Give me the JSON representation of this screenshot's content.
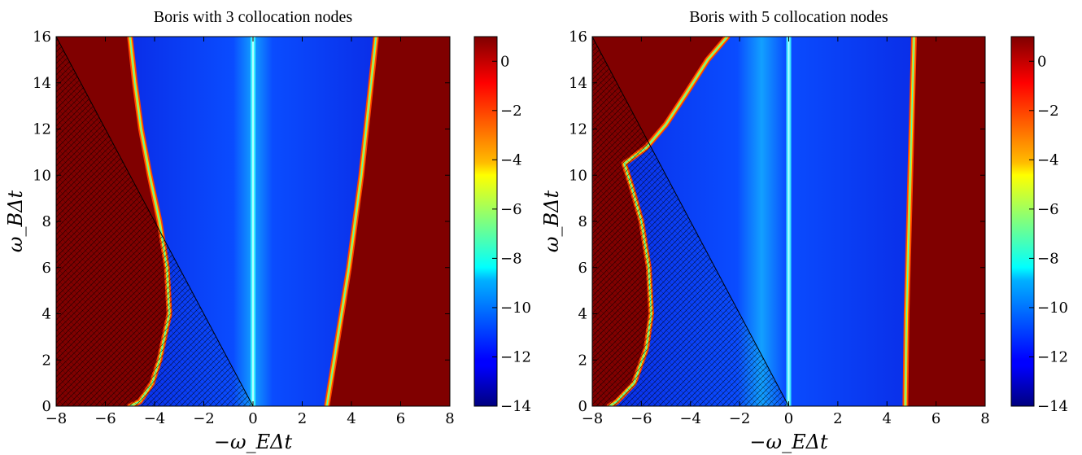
{
  "chart_data": [
    {
      "type": "heatmap",
      "title": "Boris with 3 collocation nodes",
      "xlabel": "−ω_EΔt",
      "ylabel": "ω_BΔt",
      "xlim": [
        -8,
        8
      ],
      "ylim": [
        0,
        16
      ],
      "x_ticks": [
        -8,
        -6,
        -4,
        -2,
        0,
        2,
        4,
        6,
        8
      ],
      "y_ticks": [
        0,
        2,
        4,
        6,
        8,
        10,
        12,
        14,
        16
      ],
      "x_tick_labels": [
        "−8",
        "−6",
        "−4",
        "−2",
        "0",
        "2",
        "4",
        "6",
        "8"
      ],
      "y_tick_labels": [
        "0",
        "2",
        "4",
        "6",
        "8",
        "10",
        "12",
        "14",
        "16"
      ],
      "colorbar": {
        "min": -14,
        "max": 1,
        "ticks": [
          0,
          -2,
          -4,
          -6,
          -8,
          -10,
          -12,
          -14
        ],
        "tick_labels": [
          "0",
          "−2",
          "−4",
          "−6",
          "−8",
          "−10",
          "−12",
          "−14"
        ]
      },
      "stable_region_right_boundary": [
        [
          3.0,
          0
        ],
        [
          3.3,
          2
        ],
        [
          3.6,
          4
        ],
        [
          3.9,
          6
        ],
        [
          4.15,
          8
        ],
        [
          4.4,
          10
        ],
        [
          4.6,
          12
        ],
        [
          4.8,
          14
        ],
        [
          5.0,
          16
        ]
      ],
      "stable_region_left_boundary": [
        [
          -5.0,
          16
        ],
        [
          -4.8,
          14
        ],
        [
          -4.55,
          12
        ],
        [
          -4.2,
          10
        ],
        [
          -3.8,
          8
        ],
        [
          -3.5,
          6
        ],
        [
          -3.4,
          4
        ],
        [
          -3.8,
          2
        ],
        [
          -4.1,
          1
        ],
        [
          -4.6,
          0.2
        ],
        [
          -5.0,
          0
        ]
      ],
      "hatched_triangle": [
        [
          -8,
          0
        ],
        [
          -8,
          16
        ],
        [
          0,
          0
        ]
      ]
    },
    {
      "type": "heatmap",
      "title": "Boris with 5 collocation nodes",
      "xlabel": "−ω_EΔt",
      "ylabel": "ω_BΔt",
      "xlim": [
        -8,
        8
      ],
      "ylim": [
        0,
        16
      ],
      "x_ticks": [
        -8,
        -6,
        -4,
        -2,
        0,
        2,
        4,
        6,
        8
      ],
      "y_ticks": [
        0,
        2,
        4,
        6,
        8,
        10,
        12,
        14,
        16
      ],
      "x_tick_labels": [
        "−8",
        "−6",
        "−4",
        "−2",
        "0",
        "2",
        "4",
        "6",
        "8"
      ],
      "y_tick_labels": [
        "0",
        "2",
        "4",
        "6",
        "8",
        "10",
        "12",
        "14",
        "16"
      ],
      "colorbar": {
        "min": -14,
        "max": 1,
        "ticks": [
          0,
          -2,
          -4,
          -6,
          -8,
          -10,
          -12,
          -14
        ],
        "tick_labels": [
          "0",
          "−2",
          "−4",
          "−6",
          "−8",
          "−10",
          "−12",
          "−14"
        ]
      },
      "stable_region_right_boundary": [
        [
          4.75,
          0
        ],
        [
          4.8,
          4
        ],
        [
          4.9,
          8
        ],
        [
          5.0,
          12
        ],
        [
          5.1,
          16
        ]
      ],
      "stable_region_left_boundary": [
        [
          -2.5,
          16
        ],
        [
          -3.3,
          15
        ],
        [
          -4.2,
          13.5
        ],
        [
          -5.0,
          12.2
        ],
        [
          -5.8,
          11.2
        ],
        [
          -6.7,
          10.5
        ],
        [
          -6.4,
          9.5
        ],
        [
          -6.0,
          8
        ],
        [
          -5.7,
          6
        ],
        [
          -5.6,
          4
        ],
        [
          -5.8,
          2.5
        ],
        [
          -6.3,
          1
        ],
        [
          -7.0,
          0.2
        ],
        [
          -7.3,
          0
        ]
      ],
      "hatched_triangle": [
        [
          -8,
          0
        ],
        [
          -8,
          16
        ],
        [
          0,
          0
        ]
      ]
    }
  ]
}
